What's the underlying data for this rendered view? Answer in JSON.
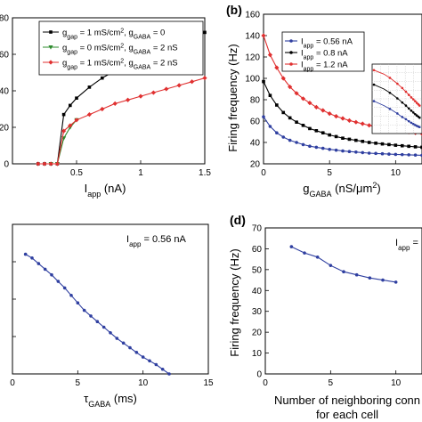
{
  "chart_data": [
    {
      "panel": "",
      "type": "line",
      "xlabel": "I",
      "xlabel_sub": "app",
      "xlabel_unit": " (nA)",
      "ylabel": "",
      "xlim": [
        0,
        1.5
      ],
      "ylim": [
        0,
        80
      ],
      "xticks": [
        "0.5",
        "1",
        "1.5"
      ],
      "xtick_values": [
        0.5,
        1,
        1.5
      ],
      "ytick_values": [
        0,
        20,
        40,
        60,
        80
      ],
      "yticks": [
        "0",
        "20",
        "40",
        "60",
        "80"
      ],
      "legend_position": "top-right",
      "series": [
        {
          "name": "g_gap = 1 mS/cm², g_GABA = 0",
          "color": "#000000",
          "x": [
            0.2,
            0.25,
            0.3,
            0.35,
            0.4,
            0.45,
            0.5,
            0.6,
            0.7,
            0.8,
            0.9,
            1.0,
            1.1,
            1.2,
            1.3,
            1.4,
            1.5
          ],
          "y": [
            0,
            0,
            0,
            0,
            27,
            32,
            36,
            42,
            47,
            51,
            55,
            58,
            61,
            64,
            67,
            69,
            72
          ]
        },
        {
          "name": "g_gap = 0 mS/cm², g_GABA = 2 nS",
          "color": "#2e8b2e",
          "x": [
            0.3,
            0.35,
            0.4,
            0.45,
            0.5
          ],
          "y": [
            0,
            0,
            14,
            20,
            24
          ]
        },
        {
          "name": "g_gap = 1 mS/cm², g_GABA = 2 nS",
          "color": "#e03030",
          "x": [
            0.2,
            0.25,
            0.3,
            0.35,
            0.4,
            0.45,
            0.5,
            0.6,
            0.7,
            0.8,
            0.9,
            1.0,
            1.1,
            1.2,
            1.3,
            1.4,
            1.5
          ],
          "y": [
            0,
            0,
            0,
            0,
            18,
            21,
            24,
            27,
            30,
            33,
            35,
            37,
            39,
            41,
            43,
            45,
            47
          ]
        }
      ]
    },
    {
      "panel": "(b)",
      "type": "line",
      "xlabel": "g",
      "xlabel_sub": "GABA",
      "xlabel_unit": " (nS/μm",
      "xlabel_sup": "2",
      "xlabel_close": ")",
      "ylabel": "Firing frequency (Hz)",
      "xlim": [
        0,
        12
      ],
      "ylim": [
        20,
        160
      ],
      "xticks": [
        "0",
        "5",
        "10"
      ],
      "xtick_values": [
        0,
        5,
        10
      ],
      "yticks": [
        "20",
        "40",
        "60",
        "80",
        "100",
        "120",
        "140",
        "160"
      ],
      "ytick_values": [
        20,
        40,
        60,
        80,
        100,
        120,
        140,
        160
      ],
      "legend_position": "top-left",
      "series": [
        {
          "name_main": "I",
          "name_sub": "app",
          "name_rest": " = 0.56 nA",
          "color": "#2f3fa0",
          "x": [
            0,
            0.5,
            1,
            1.5,
            2,
            2.5,
            3,
            3.5,
            4,
            4.5,
            5,
            5.5,
            6,
            6.5,
            7,
            7.5,
            8,
            8.5,
            9,
            9.5,
            10,
            10.5,
            11,
            11.5,
            12
          ],
          "y": [
            64,
            55,
            49,
            45,
            42,
            40,
            38,
            36.5,
            35.5,
            34.5,
            33.5,
            32.8,
            32,
            31.5,
            31,
            30.5,
            30,
            29.7,
            29.4,
            29.1,
            28.8,
            28.6,
            28.4,
            28.2,
            28
          ]
        },
        {
          "name_main": "I",
          "name_sub": "app",
          "name_rest": " = 0.8 nA",
          "color": "#000000",
          "x": [
            0,
            0.5,
            1,
            1.5,
            2,
            2.5,
            3,
            3.5,
            4,
            4.5,
            5,
            5.5,
            6,
            6.5,
            7,
            7.5,
            8,
            8.5,
            9,
            9.5,
            10,
            10.5,
            11,
            11.5,
            12
          ],
          "y": [
            97,
            84,
            75,
            68,
            63,
            59,
            56,
            53,
            51,
            49,
            47,
            45.5,
            44,
            43,
            42,
            41,
            40,
            39.3,
            38.6,
            38,
            37.4,
            36.9,
            36.4,
            35.9,
            35.5
          ]
        },
        {
          "name_main": "I",
          "name_sub": "app",
          "name_rest": " = 1.2 nA",
          "color": "#e03030",
          "x": [
            0,
            0.5,
            1,
            1.5,
            2,
            2.5,
            3,
            3.5,
            4,
            4.5,
            5,
            5.5,
            6,
            6.5,
            7,
            7.5,
            8,
            8.5,
            9,
            9.5,
            10,
            10.5,
            11,
            11.5,
            12
          ],
          "y": [
            140,
            122,
            110,
            100,
            92,
            86,
            81,
            77,
            73,
            70,
            67,
            64.5,
            62.5,
            60.5,
            59,
            57.5,
            56,
            54.8,
            53.6,
            52.5,
            51.5,
            50.6,
            49.8,
            49,
            48.3
          ]
        }
      ]
    },
    {
      "panel": "",
      "type": "line",
      "xlabel": "τ",
      "xlabel_sub": "GABA",
      "xlabel_unit": " (ms)",
      "ylabel": "",
      "annotation": "I",
      "annotation_sub": "app",
      "annotation_rest": " = 0.56 nA",
      "xlim": [
        0,
        15
      ],
      "ylim": [
        0,
        80
      ],
      "xticks": [
        "0",
        "5",
        "10",
        "15"
      ],
      "xtick_values": [
        0,
        5,
        10,
        15
      ],
      "ytick_values": [
        20,
        40,
        60
      ],
      "series": [
        {
          "color": "#2f3fa0",
          "x": [
            1,
            1.5,
            2,
            2.5,
            3,
            3.5,
            4,
            4.5,
            5,
            5.5,
            6,
            6.5,
            7,
            7.5,
            8,
            8.5,
            9,
            9.5,
            10,
            10.5,
            11,
            11.5,
            12
          ],
          "y": [
            64,
            62,
            59,
            56,
            53,
            49.5,
            46,
            42,
            38,
            34,
            31,
            28,
            25,
            22,
            19,
            16.5,
            14,
            11.5,
            9,
            7,
            5,
            2.5,
            0
          ]
        }
      ]
    },
    {
      "panel": "(d)",
      "type": "line",
      "xlabel": "Number of neighboring conn",
      "xlabel_line2": "for each cell",
      "ylabel": "Firing frequency (Hz)",
      "annotation": "I",
      "annotation_sub": "app",
      "annotation_rest": " =",
      "xlim": [
        0,
        12
      ],
      "ylim": [
        0,
        70
      ],
      "xticks": [
        "0",
        "5",
        "10"
      ],
      "xtick_values": [
        0,
        5,
        10
      ],
      "yticks": [
        "0",
        "10",
        "20",
        "30",
        "40",
        "50",
        "60",
        "70"
      ],
      "ytick_values": [
        0,
        10,
        20,
        30,
        40,
        50,
        60,
        70
      ],
      "series": [
        {
          "color": "#2f3fa0",
          "x": [
            2,
            3,
            4,
            5,
            6,
            7,
            8,
            9,
            10
          ],
          "y": [
            61,
            58,
            56,
            52,
            49,
            47.5,
            46,
            45,
            44
          ]
        }
      ]
    }
  ]
}
